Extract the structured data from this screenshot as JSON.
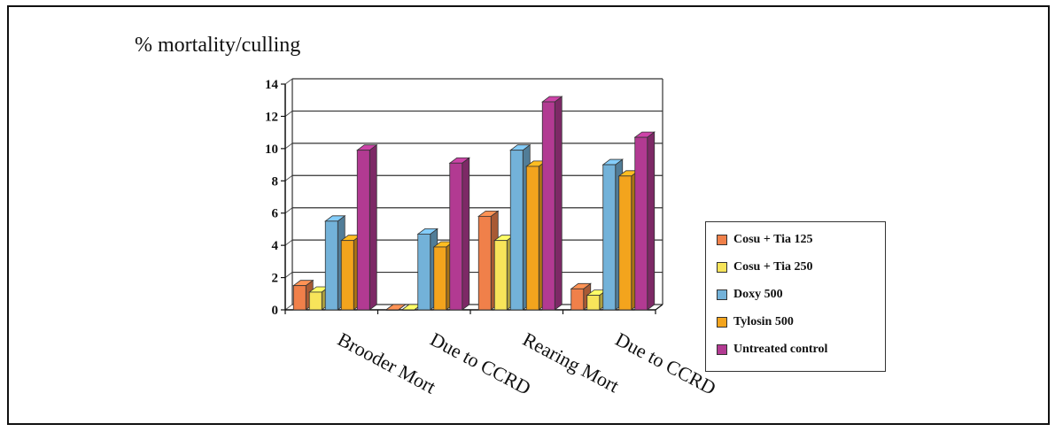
{
  "chart_data": {
    "type": "bar",
    "title": "",
    "ylabel": "% mortality/culling",
    "xlabel": "",
    "ylim": [
      0,
      14
    ],
    "yticks": [
      0,
      2,
      4,
      6,
      8,
      10,
      12,
      14
    ],
    "grid": true,
    "legend_position": "right",
    "categories": [
      "Brooder Mort",
      "Due to CCRD",
      "Rearing Mort",
      "Due to CCRD"
    ],
    "series": [
      {
        "name": "Cosu + Tia 125",
        "color": "#f0804a",
        "values": [
          1.5,
          0,
          5.8,
          1.3
        ]
      },
      {
        "name": "Cosu + Tia 250",
        "color": "#f7e45a",
        "values": [
          1.1,
          0,
          4.3,
          0.9
        ]
      },
      {
        "name": "Doxy 500",
        "color": "#73b2d9",
        "values": [
          5.5,
          4.7,
          9.9,
          9.0
        ]
      },
      {
        "name": "Tylosin 500",
        "color": "#f3a41d",
        "values": [
          4.3,
          3.9,
          8.9,
          8.3
        ]
      },
      {
        "name": "Untreated control",
        "color": "#b23a92",
        "values": [
          9.9,
          9.1,
          12.9,
          10.7
        ]
      }
    ]
  }
}
